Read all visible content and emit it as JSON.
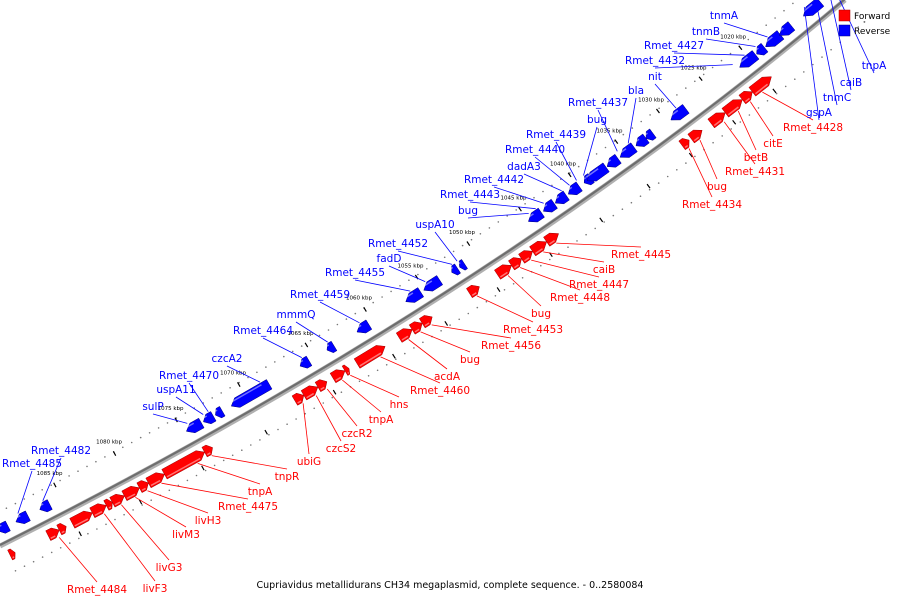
{
  "caption": "Cupriavidus metallidurans CH34 megaplasmid, complete sequence. - 0..2580084",
  "legend": [
    {
      "label": "Forward",
      "color": "#ff0000"
    },
    {
      "label": "Reverse",
      "color": "#0000ff"
    }
  ],
  "colors": {
    "forward": "#ff0000",
    "reverse": "#0000ff",
    "backbone": "#808080"
  },
  "ticks": [
    "1020 kbp",
    "1025 kbp",
    "1030 kbp",
    "1035 kbp",
    "1040 kbp",
    "1045 kbp",
    "1050 kbp",
    "1055 kbp",
    "1060 kbp",
    "1065 kbp",
    "1070 kbp",
    "1075 kbp",
    "1080 kbp",
    "1085 kbp"
  ],
  "reverse_labels": [
    "tnmA",
    "tnmB",
    "Rmet_4427",
    "Rmet_4432",
    "nit",
    "bla",
    "Rmet_4437",
    "bug",
    "Rmet_4439",
    "Rmet_4440",
    "dadA3",
    "Rmet_4442",
    "Rmet_4443",
    "bug",
    "uspA10",
    "Rmet_4452",
    "fadD",
    "Rmet_4455",
    "Rmet_4459",
    "mmmQ",
    "Rmet_4464",
    "czcA2",
    "Rmet_4470",
    "uspA11",
    "sulP",
    "Rmet_4482",
    "Rmet_4485",
    "caiB",
    "tnmC",
    "gspA",
    "tnpA"
  ],
  "forward_labels": [
    "Rmet_4428",
    "citE",
    "betB",
    "Rmet_4431",
    "bug",
    "Rmet_4434",
    "Rmet_4445",
    "caiB",
    "Rmet_4447",
    "Rmet_4448",
    "bug",
    "Rmet_4453",
    "Rmet_4456",
    "bug",
    "acdA",
    "Rmet_4460",
    "hns",
    "tnpA",
    "czcR2",
    "czcS2",
    "ubiG",
    "tnpR",
    "tnpA",
    "Rmet_4475",
    "livH3",
    "livM3",
    "livG3",
    "livF3",
    "Rmet_4484"
  ]
}
